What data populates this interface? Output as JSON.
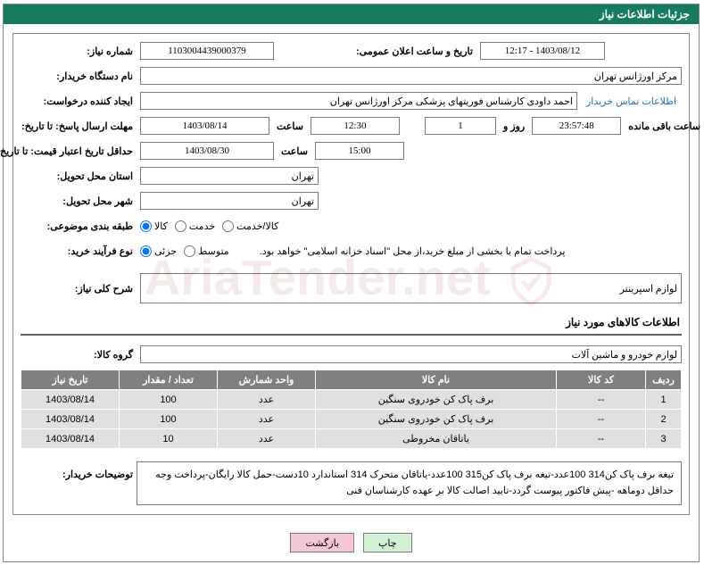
{
  "header": {
    "title": "جزئیات اطلاعات نیاز"
  },
  "fields": {
    "need_number_label": "شماره نیاز:",
    "need_number": "1103004439000379",
    "announce_label": "تاریخ و ساعت اعلان عمومی:",
    "announce_value": "1403/08/12 - 12:17",
    "buyer_org_label": "نام دستگاه خریدار:",
    "buyer_org": "مرکز اورژانس تهران",
    "requester_label": "ایجاد کننده درخواست:",
    "requester": "احمد داودی کارشناس فوریتهای پزشکی مرکز اورژانس تهران",
    "contact_link": "اطلاعات تماس خریدار",
    "deadline_label": "مهلت ارسال پاسخ: تا تاریخ:",
    "deadline_date": "1403/08/14",
    "time_label": "ساعت",
    "deadline_time": "12:30",
    "days_remaining": "1",
    "days_and": "روز و",
    "time_remaining": "23:57:48",
    "remaining_label": "ساعت باقی مانده",
    "validity_label": "حداقل تاریخ اعتبار قیمت: تا تاریخ:",
    "validity_date": "1403/08/30",
    "validity_time": "15:00",
    "province_label": "استان محل تحویل:",
    "province": "تهران",
    "city_label": "شهر محل تحویل:",
    "city": "تهران",
    "category_label": "طبقه بندی موضوعی:",
    "cat_goods": "کالا",
    "cat_service": "خدمت",
    "cat_both": "کالا/خدمت",
    "process_label": "نوع فرآیند خرید:",
    "proc_partial": "جزئی",
    "proc_medium": "متوسط",
    "payment_note": "پرداخت تمام یا بخشی از مبلغ خرید،از محل \"اسناد خزانه اسلامی\" خواهد بود.",
    "need_desc_label": "شرح کلی نیاز:",
    "need_desc": "لوازم اسپرینتر",
    "goods_section_title": "اطلاعات کالاهای مورد نیاز",
    "goods_group_label": "گروه کالا:",
    "goods_group": "لوازم خودرو و ماشین آلات",
    "buyer_notes_label": "توضیحات خریدار:",
    "buyer_notes": "تیغه برف پاک کن314   100عدد-تیغه برف پاک کن315   100عدد-یاتاقان متحرک 314 استاندارد   10دست-حمل کالا رایگان-پرداخت وجه حداقل دوماهه -پیش فاکتور پیوست گردد-تایید اصالت کالا بر عهده کارشناسان فنی"
  },
  "table": {
    "headers": {
      "row": "ردیف",
      "code": "کد کالا",
      "name": "نام کالا",
      "unit": "واحد شمارش",
      "qty": "تعداد / مقدار",
      "date": "تاریخ نیاز"
    },
    "rows": [
      {
        "n": "1",
        "code": "--",
        "name": "برف پاک کن خودروی سنگین",
        "unit": "عدد",
        "qty": "100",
        "date": "1403/08/14"
      },
      {
        "n": "2",
        "code": "--",
        "name": "برف پاک کن خودروی سنگین",
        "unit": "عدد",
        "qty": "100",
        "date": "1403/08/14"
      },
      {
        "n": "3",
        "code": "--",
        "name": "یاتاقان مخروطی",
        "unit": "عدد",
        "qty": "10",
        "date": "1403/08/14"
      }
    ],
    "col_widths": {
      "row": "40px",
      "code": "100px",
      "name": "auto",
      "unit": "110px",
      "qty": "110px",
      "date": "110px"
    }
  },
  "buttons": {
    "print": "چاپ",
    "back": "بازگشت"
  },
  "colors": {
    "header_bg": "#167c5f",
    "th_bg": "#808080",
    "td_bg": "#e0e0e0",
    "btn_print": "#d4f0d4",
    "btn_back": "#f5c6d6",
    "link": "#1a6fb8",
    "border": "#888888"
  }
}
